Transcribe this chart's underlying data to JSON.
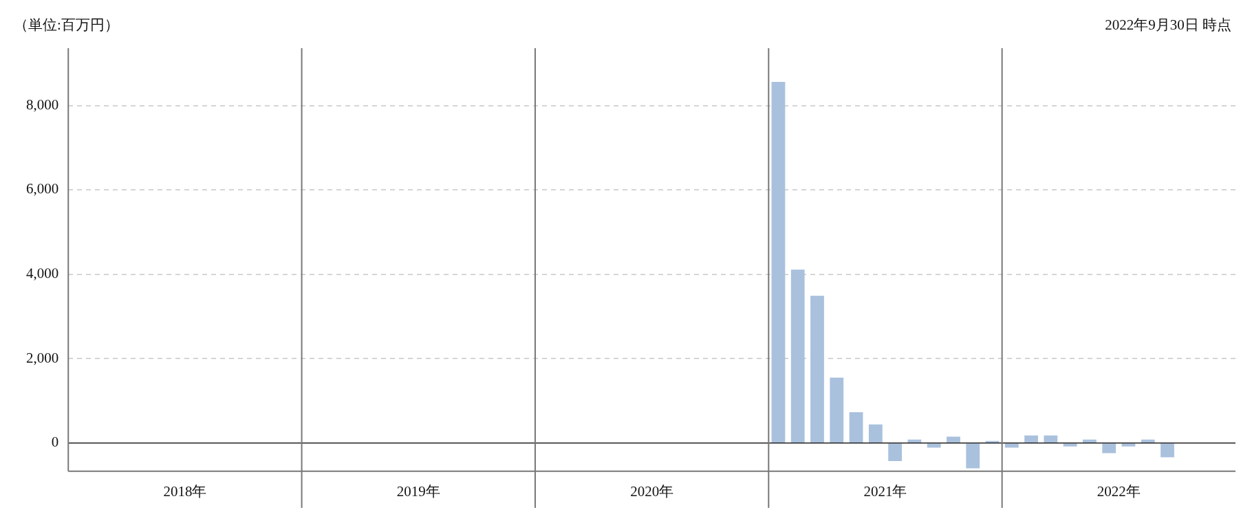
{
  "chart_data": {
    "type": "bar",
    "ylabel": "（単位:百万円）",
    "annotations": [
      "2022年9月30日 時点"
    ],
    "categories": [
      null,
      null,
      null,
      null,
      null,
      null,
      "2018年",
      null,
      null,
      null,
      null,
      null,
      null,
      null,
      null,
      null,
      null,
      null,
      "2019年",
      null,
      null,
      null,
      null,
      null,
      null,
      null,
      null,
      null,
      null,
      null,
      "2020年",
      null,
      null,
      null,
      null,
      null,
      null,
      null,
      null,
      null,
      null,
      null,
      "2021年",
      null,
      null,
      null,
      null,
      null,
      null,
      null,
      null,
      null,
      null,
      null,
      "2022年",
      null,
      null,
      null,
      null,
      null
    ],
    "series": [
      {
        "color": "#a9c1dd",
        "values": [
          null,
          null,
          null,
          null,
          null,
          null,
          null,
          null,
          null,
          null,
          null,
          null,
          null,
          null,
          null,
          null,
          null,
          null,
          null,
          null,
          null,
          null,
          null,
          null,
          null,
          null,
          null,
          null,
          null,
          null,
          null,
          null,
          null,
          null,
          null,
          null,
          8560,
          4110,
          3490,
          1550,
          730,
          440,
          -430,
          80,
          -110,
          150,
          -600,
          50,
          -110,
          180,
          180,
          -80,
          80,
          -240,
          -80,
          80,
          -340,
          null,
          null,
          null
        ]
      }
    ],
    "ylim": [
      -670,
      9360
    ],
    "yticks": [
      0,
      {
        "value": 2000,
        "label": "2,000"
      },
      {
        "value": 4000,
        "label": "4,000"
      },
      {
        "value": 6000,
        "label": "6,000"
      },
      {
        "value": 8000,
        "label": "8,000"
      }
    ],
    "grid": true,
    "legend": false
  }
}
